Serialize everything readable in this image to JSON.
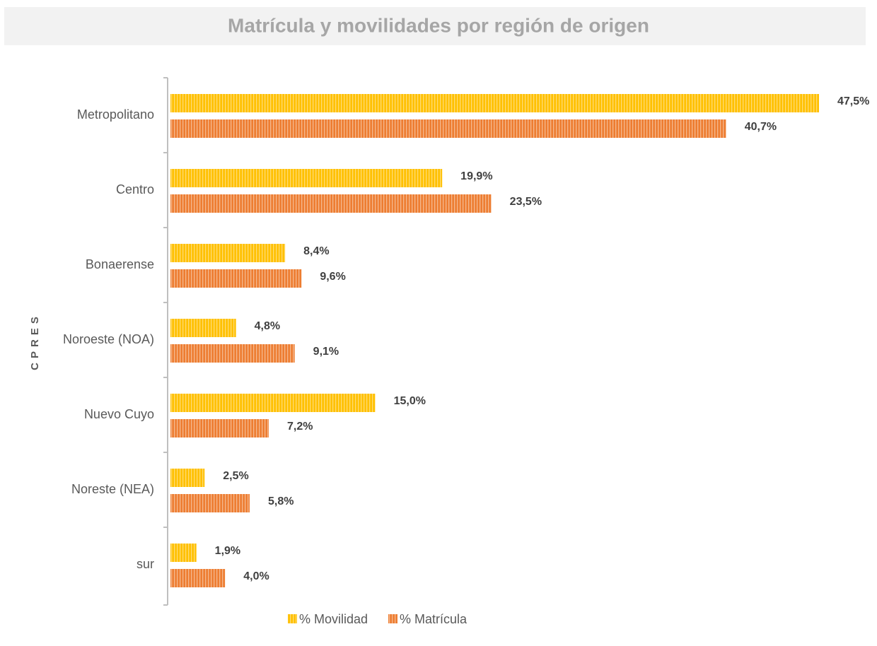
{
  "chart_data": {
    "type": "bar",
    "orientation": "horizontal",
    "title": "Matrícula y movilidades por región de origen",
    "y_label": "CPRES",
    "categories": [
      "Metropolitano",
      "Centro",
      "Bonaerense",
      "Noroeste (NOA)",
      "Nuevo Cuyo",
      "Noreste (NEA)",
      "sur"
    ],
    "series": [
      {
        "name": "% Movilidad",
        "color": "#ffc000",
        "values": [
          47.5,
          19.9,
          8.4,
          4.8,
          15.0,
          2.5,
          1.9
        ],
        "value_labels": [
          "47,5%",
          "19,9%",
          "8,4%",
          "4,8%",
          "15,0%",
          "2,5%",
          "1,9%"
        ]
      },
      {
        "name": "% Matrícula",
        "color": "#ed7d31",
        "values": [
          40.7,
          23.5,
          9.6,
          9.1,
          7.2,
          5.8,
          4.0
        ],
        "value_labels": [
          "40,7%",
          "23,5%",
          "9,6%",
          "9,1%",
          "7,2%",
          "5,8%",
          "4,0%"
        ]
      }
    ],
    "legend": "bottom"
  }
}
